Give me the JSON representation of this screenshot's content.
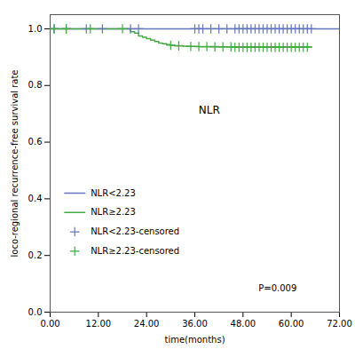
{
  "chart_data": {
    "type": "line",
    "title": "NLR",
    "xlabel": "time(months)",
    "ylabel": "loco-regional recurrence-free survival rate",
    "xlim": [
      0,
      72
    ],
    "ylim": [
      0.0,
      1.05
    ],
    "xticks": [
      {
        "value": 0,
        "label": "0.00"
      },
      {
        "value": 12,
        "label": "12.00"
      },
      {
        "value": 24,
        "label": "24.00"
      },
      {
        "value": 36,
        "label": "36.00"
      },
      {
        "value": 48,
        "label": "48.00"
      },
      {
        "value": 60,
        "label": "60.00"
      },
      {
        "value": 72,
        "label": "72.00"
      }
    ],
    "yticks": [
      {
        "value": 0.0,
        "label": "0.0"
      },
      0.2,
      0.4,
      0.6,
      0.8,
      {
        "value": 1.0,
        "label": "1.0"
      }
    ],
    "legend": "lower left",
    "annotations": [
      "P=0.009"
    ],
    "series": [
      {
        "name": "NLR<2.23",
        "color": "#6677bb",
        "type": "step",
        "x": [
          0,
          72
        ],
        "values": [
          1.0,
          1.0
        ]
      },
      {
        "name": "NLR≥2.23",
        "color": "#44aa44",
        "type": "step",
        "x": [
          0,
          19,
          20,
          21,
          22,
          23,
          24,
          25,
          26,
          27,
          28,
          29,
          30,
          31,
          33,
          35,
          37,
          39,
          42,
          65
        ],
        "values": [
          1.0,
          1.0,
          0.99,
          0.985,
          0.975,
          0.97,
          0.965,
          0.96,
          0.955,
          0.95,
          0.947,
          0.944,
          0.942,
          0.94,
          0.939,
          0.938,
          0.937,
          0.937,
          0.936,
          0.935
        ]
      },
      {
        "name": "NLR<2.23-censored",
        "color": "#6677bb",
        "type": "scatter",
        "marker": "plus",
        "x": [
          1,
          4,
          9,
          13,
          20,
          22,
          36,
          37,
          38,
          40,
          42,
          44,
          46,
          47,
          48,
          49,
          50,
          51,
          52,
          53,
          54,
          55,
          56,
          57,
          58,
          59,
          60,
          61,
          62,
          63,
          64,
          65
        ],
        "values": [
          1.0,
          1.0,
          1.0,
          1.0,
          1.0,
          1.0,
          1.0,
          1.0,
          1.0,
          1.0,
          1.0,
          1.0,
          1.0,
          1.0,
          1.0,
          1.0,
          1.0,
          1.0,
          1.0,
          1.0,
          1.0,
          1.0,
          1.0,
          1.0,
          1.0,
          1.0,
          1.0,
          1.0,
          1.0,
          1.0,
          1.0,
          1.0
        ]
      },
      {
        "name": "NLR≥2.23-censored",
        "color": "#44aa44",
        "type": "scatter",
        "marker": "plus",
        "x": [
          1,
          4,
          10,
          18,
          30,
          32,
          35,
          37,
          39,
          41,
          43,
          45,
          46,
          47,
          48,
          49,
          50,
          51,
          52,
          53,
          54,
          55,
          56,
          57,
          58,
          59,
          60,
          61,
          62,
          63,
          64
        ],
        "values": [
          1.0,
          1.0,
          1.0,
          1.0,
          0.942,
          0.94,
          0.938,
          0.937,
          0.937,
          0.936,
          0.936,
          0.936,
          0.935,
          0.935,
          0.935,
          0.935,
          0.935,
          0.935,
          0.935,
          0.935,
          0.935,
          0.935,
          0.935,
          0.935,
          0.935,
          0.935,
          0.935,
          0.935,
          0.935,
          0.935,
          0.935
        ]
      }
    ]
  }
}
